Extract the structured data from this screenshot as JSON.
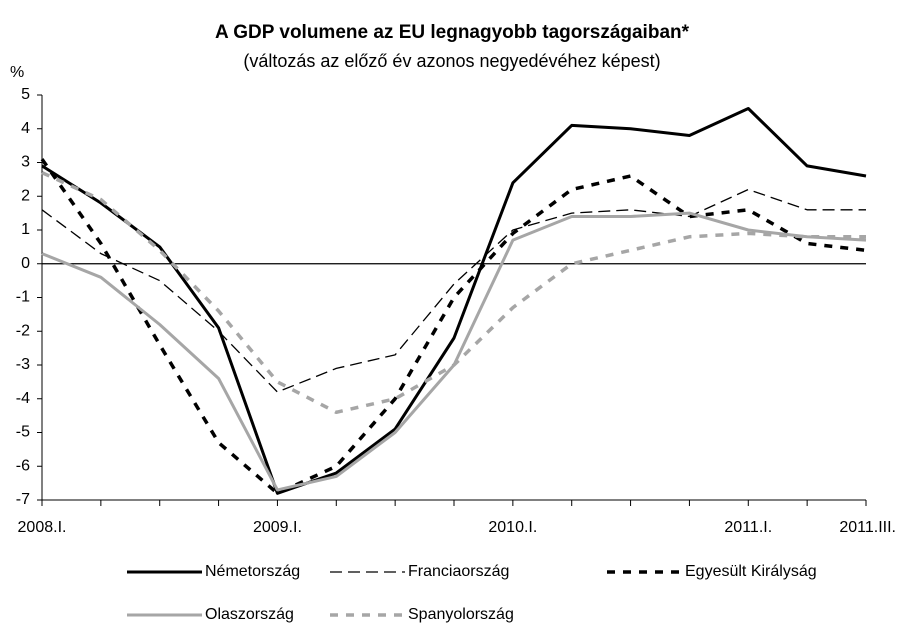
{
  "chart_data": {
    "type": "line",
    "title": "A GDP volumene az EU legnagyobb tagországaiban*",
    "subtitle": "(változás az előző év azonos negyedévéhez képest)",
    "y_label": "%",
    "categories": [
      "2008.I.",
      null,
      null,
      null,
      "2009.I.",
      null,
      null,
      null,
      "2010.I.",
      null,
      null,
      null,
      "2011.I.",
      null,
      "2011.III."
    ],
    "ylim": [
      -7,
      5
    ],
    "yticks": [
      -7,
      -6,
      -5,
      -4,
      -3,
      -2,
      -1,
      0,
      1,
      2,
      3,
      4,
      5
    ],
    "series": [
      {
        "name": "Németország",
        "color": "#000000",
        "style": "solid",
        "values": [
          2.9,
          1.8,
          0.5,
          -1.9,
          -6.8,
          -6.2,
          -4.9,
          -2.2,
          2.4,
          4.1,
          4.0,
          3.8,
          4.6,
          2.9,
          2.6
        ]
      },
      {
        "name": "Franciaország",
        "color": "#000000",
        "style": "long-dash",
        "values": [
          1.6,
          0.3,
          -0.5,
          -2.0,
          -3.8,
          -3.1,
          -2.7,
          -0.6,
          1.0,
          1.5,
          1.6,
          1.4,
          2.2,
          1.6,
          1.6
        ]
      },
      {
        "name": "Egyesült Királyság",
        "color": "#000000",
        "style": "short-dash",
        "values": [
          3.1,
          0.6,
          -2.4,
          -5.3,
          -6.8,
          -6.0,
          -4.0,
          -1.0,
          0.9,
          2.2,
          2.6,
          1.4,
          1.6,
          0.6,
          0.4
        ]
      },
      {
        "name": "Olaszország",
        "color": "#a6a6a6",
        "style": "solid",
        "values": [
          0.3,
          -0.4,
          -1.8,
          -3.4,
          -6.7,
          -6.3,
          -5.0,
          -3.0,
          0.7,
          1.4,
          1.4,
          1.5,
          1.0,
          0.8,
          0.7
        ]
      },
      {
        "name": "Spanyolország",
        "color": "#a6a6a6",
        "style": "short-dash",
        "values": [
          2.7,
          1.9,
          0.4,
          -1.4,
          -3.5,
          -4.4,
          -4.0,
          -3.0,
          -1.3,
          0.0,
          0.4,
          0.8,
          0.9,
          0.8,
          0.8
        ]
      }
    ]
  }
}
